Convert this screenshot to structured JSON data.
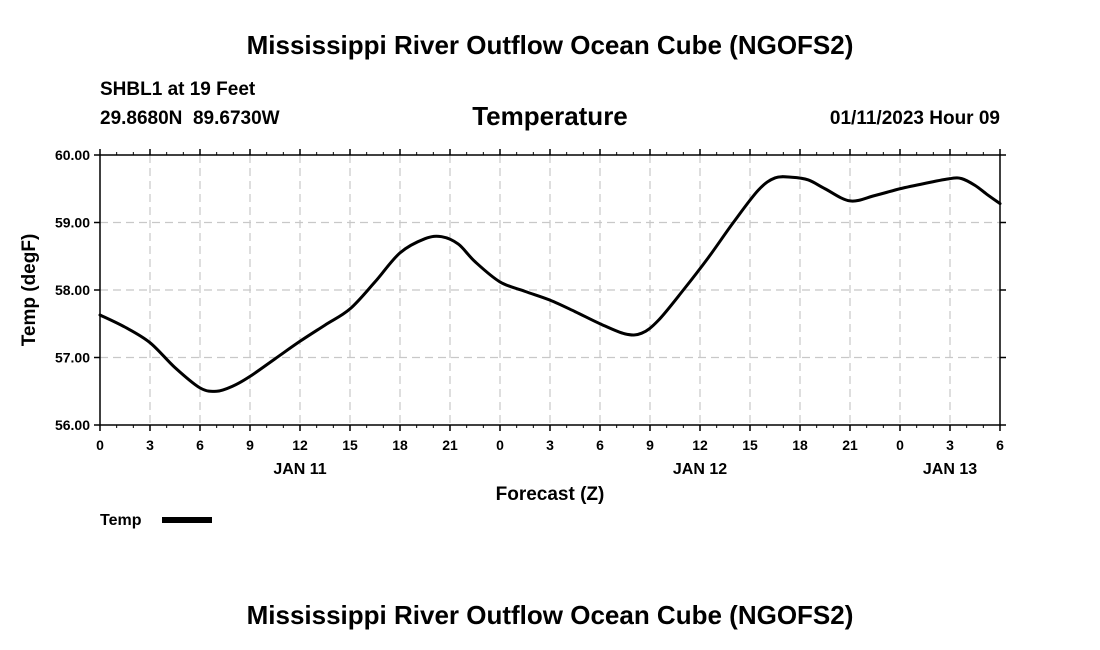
{
  "chart_data": {
    "type": "line",
    "title": "Mississippi River Outflow Ocean Cube (NGOFS2)",
    "station": "SHBL1 at 19 Feet",
    "coordinates": "29.8680N  89.6730W",
    "subtitle": "Temperature",
    "datetime": "01/11/2023 Hour 09",
    "ylabel": "Temp (degF)",
    "xlabel": "Forecast (Z)",
    "ylim": [
      56.0,
      60.0
    ],
    "y_ticks": [
      "56.00",
      "57.00",
      "58.00",
      "59.00",
      "60.00"
    ],
    "xlim_hours": [
      0,
      54
    ],
    "x_tick_labels": [
      "0",
      "3",
      "6",
      "9",
      "12",
      "15",
      "18",
      "21",
      "0",
      "3",
      "6",
      "9",
      "12",
      "15",
      "18",
      "21",
      "0",
      "3",
      "6"
    ],
    "day_labels": [
      {
        "label": "JAN 11",
        "hour": 12
      },
      {
        "label": "JAN 12",
        "hour": 36
      },
      {
        "label": "JAN 13",
        "hour": 51
      }
    ],
    "grid": true,
    "legend": "bottom-left",
    "series": [
      {
        "name": "Temp",
        "x": [
          0,
          1.5,
          3,
          4.5,
          6,
          7,
          8,
          9,
          10.5,
          12,
          13.5,
          15,
          16.5,
          18,
          19.5,
          20.5,
          21.5,
          22.5,
          24,
          25.5,
          27,
          28.5,
          30,
          31.5,
          32.5,
          33.5,
          35,
          36.5,
          38,
          39.5,
          40.5,
          41.5,
          42.5,
          43.5,
          45,
          46.5,
          48,
          49.5,
          51,
          51.7,
          52.5,
          53.2,
          54
        ],
        "values": [
          57.63,
          57.45,
          57.22,
          56.85,
          56.55,
          56.5,
          56.58,
          56.72,
          56.98,
          57.24,
          57.48,
          57.72,
          58.12,
          58.55,
          58.76,
          58.79,
          58.68,
          58.42,
          58.12,
          57.98,
          57.85,
          57.68,
          57.5,
          57.35,
          57.36,
          57.55,
          58.0,
          58.48,
          59.0,
          59.48,
          59.66,
          59.67,
          59.63,
          59.5,
          59.32,
          59.4,
          59.5,
          59.58,
          59.65,
          59.65,
          59.55,
          59.42,
          59.28
        ]
      }
    ]
  }
}
